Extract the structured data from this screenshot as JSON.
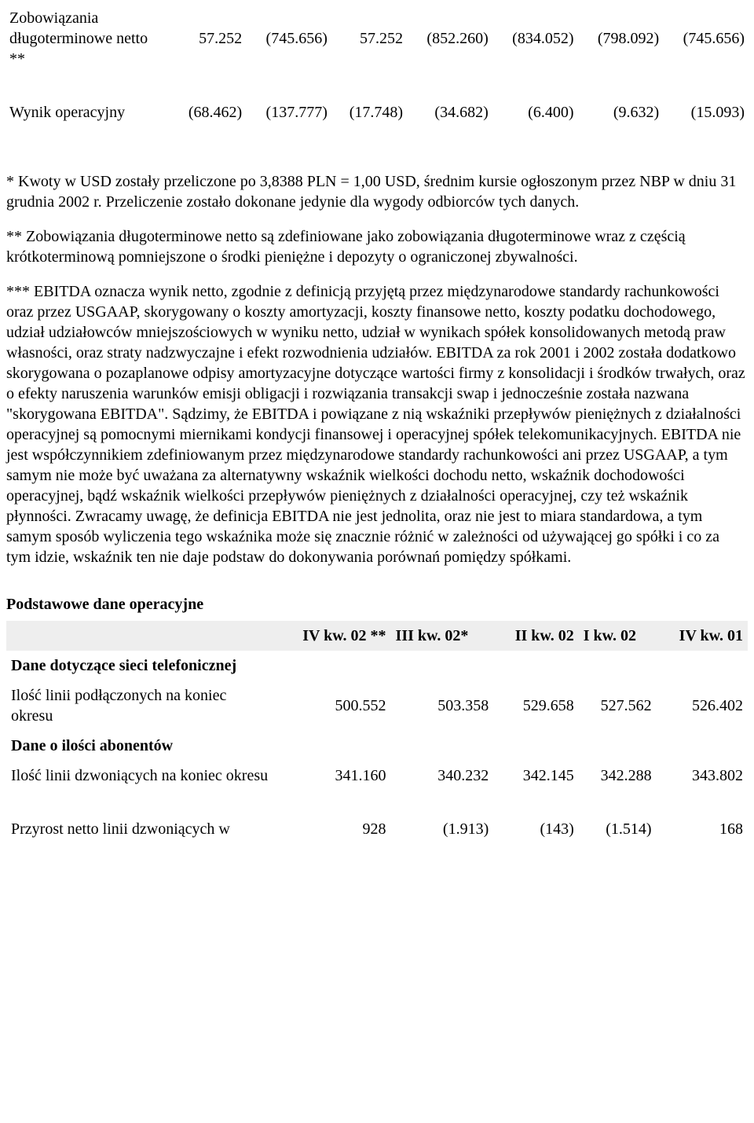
{
  "financial": {
    "rows": [
      {
        "label": "Zobowiązania długoterminowe netto **",
        "c1": "57.252",
        "c2": "(745.656)",
        "c3": "57.252",
        "c4": "(852.260)",
        "c5": "(834.052)",
        "c6": "(798.092)",
        "c7": "(745.656)"
      },
      {
        "label": "Wynik operacyjny",
        "c1": "(68.462)",
        "c2": "(137.777)",
        "c3": "(17.748)",
        "c4": "(34.682)",
        "c5": "(6.400)",
        "c6": "(9.632)",
        "c7": "(15.093)"
      }
    ]
  },
  "notes": {
    "n1": "* Kwoty w USD zostały przeliczone po 3,8388 PLN = 1,00 USD, średnim kursie ogłoszonym przez NBP w dniu 31 grudnia 2002 r. Przeliczenie zostało dokonane jedynie dla wygody odbiorców tych danych.",
    "n2": "** Zobowiązania długoterminowe netto są zdefiniowane jako zobowiązania długoterminowe wraz z częścią krótkoterminową pomniejszone o środki pieniężne i depozyty o ograniczonej zbywalności.",
    "n3": "*** EBITDA oznacza wynik netto, zgodnie z definicją przyjętą przez międzynarodowe standardy rachunkowości oraz przez USGAAP, skorygowany o koszty amortyzacji, koszty finansowe netto, koszty podatku dochodowego, udział udziałowców mniejszościowych w wyniku netto, udział w wynikach spółek konsolidowanych metodą praw własności, oraz straty nadzwyczajne i efekt rozwodnienia udziałów. EBITDA za rok 2001 i 2002 została dodatkowo skorygowana o pozaplanowe odpisy amortyzacyjne dotyczące wartości firmy z konsolidacji i środków trwałych, oraz o efekty naruszenia warunków emisji obligacji i rozwiązania transakcji swap i jednocześnie została nazwana \"skorygowana EBITDA\". Sądzimy, że EBITDA i powiązane z nią wskaźniki przepływów pieniężnych z działalności operacyjnej są pomocnymi miernikami kondycji finansowej i operacyjnej spółek telekomunikacyjnych. EBITDA nie jest współczynnikiem zdefiniowanym przez międzynarodowe standardy rachunkowości ani przez USGAAP, a tym samym nie może być uważana za alternatywny wskaźnik wielkości dochodu netto, wskaźnik dochodowości operacyjnej, bądź wskaźnik wielkości przepływów pieniężnych z działalności operacyjnej, czy też wskaźnik płynności. Zwracamy uwagę, że definicja EBITDA nie jest jednolita, oraz nie jest to miara standardowa, a tym samym sposób wyliczenia tego wskaźnika może się znacznie różnić w zależności od używającej go spółki i co za tym idzie, wskaźnik ten nie daje podstaw do dokonywania porównań pomiędzy spółkami."
  },
  "operating": {
    "title": "Podstawowe dane operacyjne",
    "headers": {
      "h1": "IV kw. 02 **",
      "h2": "III kw. 02*",
      "h3": "II kw. 02",
      "h4": "I kw. 02",
      "h5": "IV kw. 01"
    },
    "sections": [
      {
        "title": "Dane dotyczące sieci telefonicznej",
        "rows": [
          {
            "label": "Ilość linii podłączonych na koniec okresu",
            "v1": "500.552",
            "v2": "503.358",
            "v3": "529.658",
            "v4": "527.562",
            "v5": "526.402"
          }
        ]
      },
      {
        "title": "Dane o ilości abonentów",
        "rows": [
          {
            "label": "Ilość linii dzwoniących na koniec okresu",
            "v1": "341.160",
            "v2": "340.232",
            "v3": "342.145",
            "v4": "342.288",
            "v5": "343.802"
          },
          {
            "label": "Przyrost netto linii dzwoniących w",
            "v1": "928",
            "v2": "(1.913)",
            "v3": "(143)",
            "v4": "(1.514)",
            "v5": "168"
          }
        ]
      }
    ]
  }
}
